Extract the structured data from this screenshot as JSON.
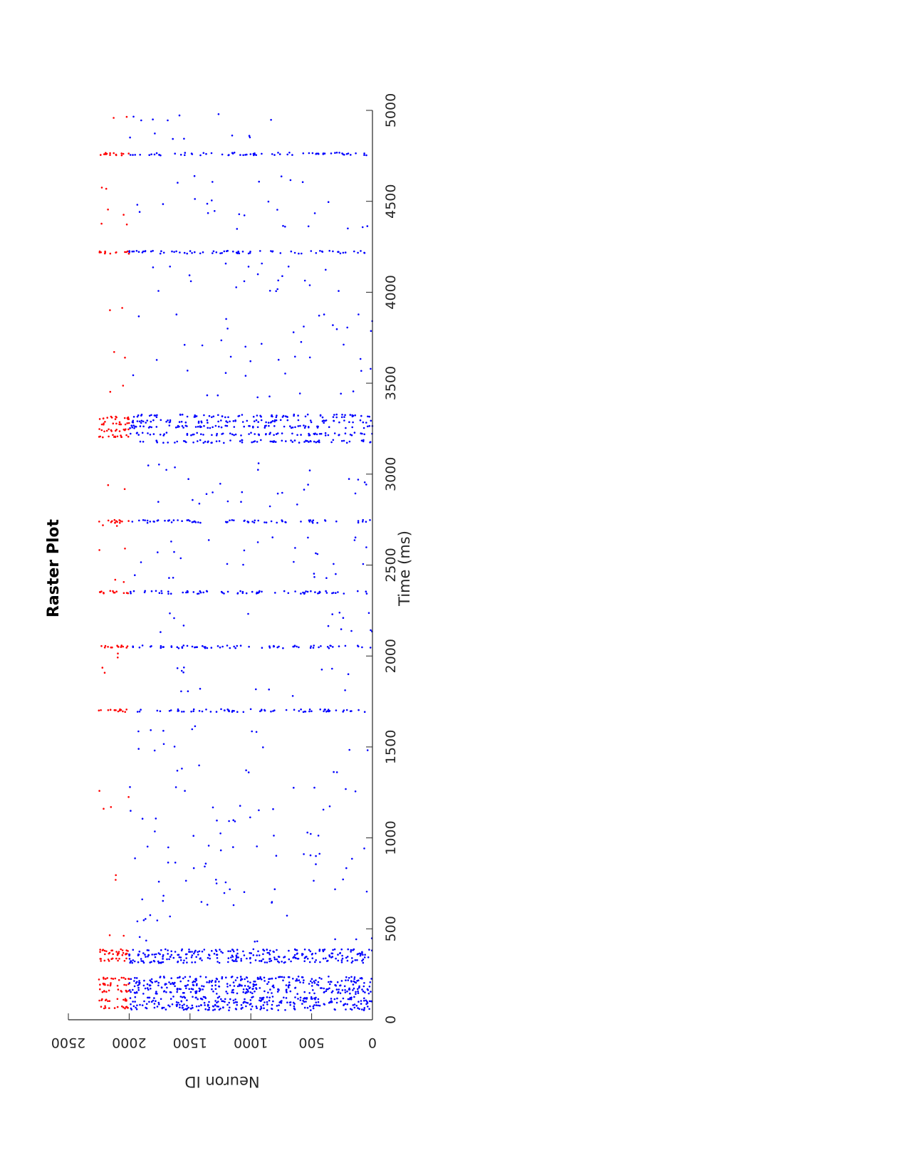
{
  "chart_data": {
    "type": "scatter",
    "title": "Raster Plot",
    "xlabel": "Time (ms)",
    "ylabel": "Neuron ID",
    "xlim": [
      0,
      5000
    ],
    "ylim": [
      0,
      2500
    ],
    "x_ticks": [
      "0",
      "500",
      "1000",
      "1500",
      "2000",
      "2500",
      "3000",
      "3500",
      "4000",
      "4500",
      "5000"
    ],
    "y_ticks": [
      "0",
      "500",
      "1000",
      "1500",
      "2000",
      "2500"
    ],
    "grid": false,
    "orientation": "rotated 90 degrees (time axis runs along the page vertically)",
    "series": [
      {
        "color": "#ff0000",
        "neuron_range": [
          2000,
          2250
        ],
        "burst_times": [
          70,
          110,
          160,
          195,
          225,
          330,
          360,
          380,
          1700,
          2050,
          2350,
          2740,
          3210,
          3240,
          3280,
          3310,
          4220,
          4760
        ],
        "sparse_times": [
          450,
          780,
          1180,
          1240,
          1920,
          2000,
          2410,
          2590,
          2700,
          2920,
          3470,
          3660,
          3900,
          4370,
          4440,
          4580,
          4960
        ]
      },
      {
        "color": "#0000ff",
        "neuron_range": [
          0,
          2000
        ],
        "burst_times": [
          60,
          80,
          100,
          120,
          150,
          170,
          190,
          210,
          230,
          320,
          340,
          360,
          380,
          1700,
          2050,
          2350,
          2740,
          3180,
          3220,
          3260,
          3290,
          3320,
          4220,
          4760
        ],
        "sparse_times": [
          450,
          560,
          650,
          700,
          760,
          850,
          900,
          950,
          1020,
          1100,
          1160,
          1260,
          1380,
          1500,
          1600,
          1800,
          1920,
          2150,
          2220,
          2440,
          2520,
          2580,
          2640,
          2840,
          2900,
          2960,
          3040,
          3440,
          3560,
          3640,
          3720,
          3800,
          3860,
          4020,
          4080,
          4140,
          4360,
          4440,
          4500,
          4620,
          4860,
          4960
        ]
      }
    ]
  }
}
